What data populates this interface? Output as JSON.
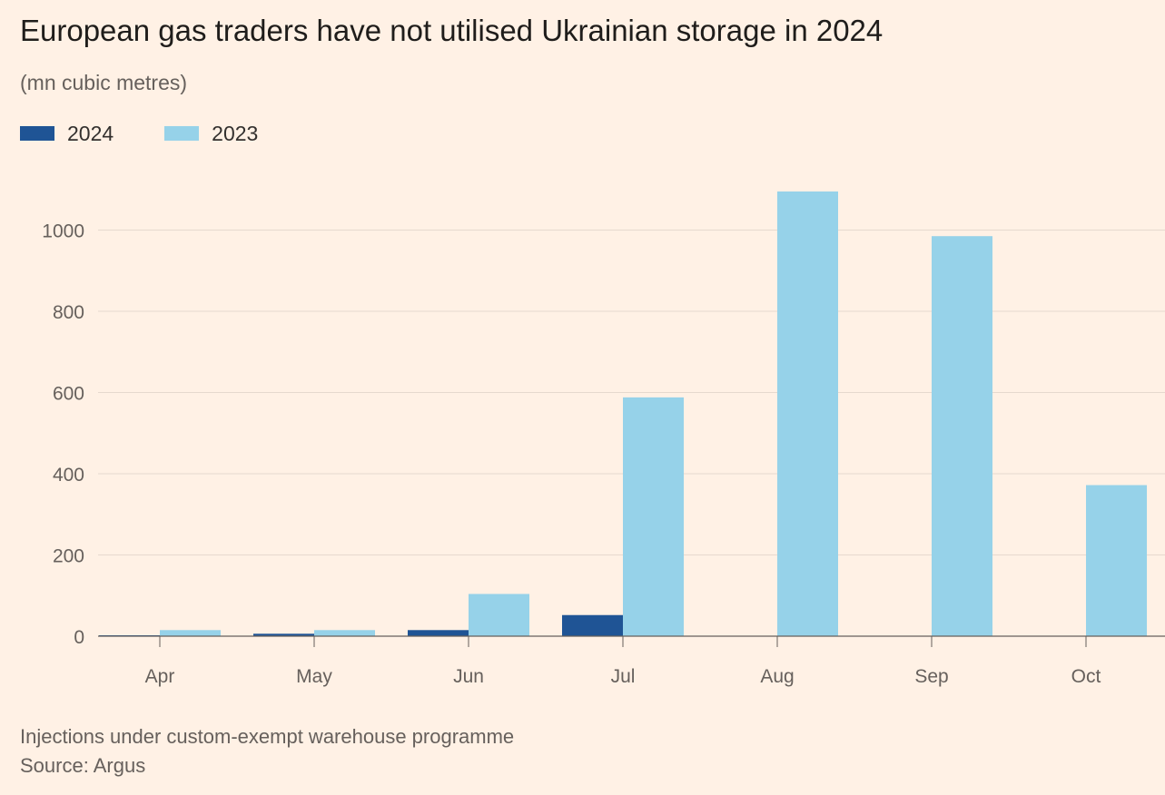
{
  "chart_data": {
    "type": "bar",
    "title": "European gas traders have not utilised Ukrainian storage in 2024",
    "subtitle": "(mn cubic metres)",
    "categories": [
      "Apr",
      "May",
      "Jun",
      "Jul",
      "Aug",
      "Sep",
      "Oct"
    ],
    "series": [
      {
        "name": "2024",
        "color": "#1F5495",
        "values": [
          2,
          6,
          15,
          52,
          0,
          0,
          0
        ]
      },
      {
        "name": "2023",
        "color": "#96D2E9",
        "values": [
          15,
          15,
          104,
          588,
          1095,
          985,
          372
        ]
      }
    ],
    "yticks": [
      0,
      200,
      400,
      600,
      800,
      1000
    ],
    "ylim": [
      0,
      1100
    ],
    "xlabel": "",
    "ylabel": "",
    "grid": true,
    "legend": "top-left",
    "notes": [
      "Injections under custom-exempt warehouse programme",
      "Source: Argus"
    ]
  }
}
